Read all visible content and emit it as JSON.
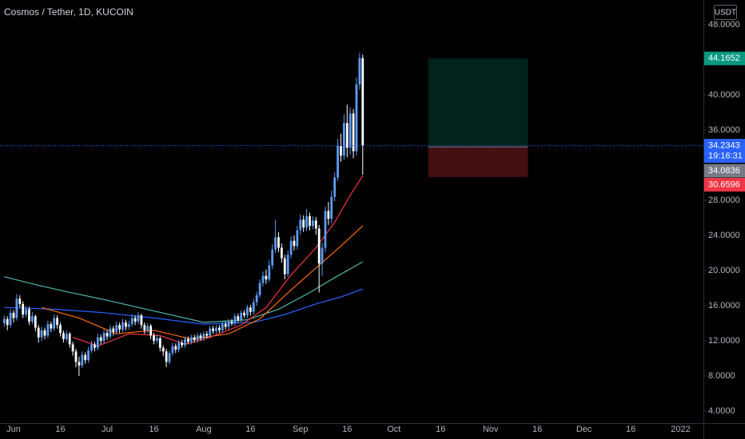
{
  "chart_data": {
    "type": "candlestick",
    "title": "Cosmos / Tether, 1D, KUCOIN",
    "currency": "USDT",
    "countdown": "19:16:31",
    "up_color": "#5b9cf6",
    "down_color": "#ffffff",
    "xlim": [
      -1.36,
      224.3
    ],
    "ylim": [
      2.64,
      50.82
    ],
    "xticks": [
      {
        "value": 3,
        "label": "Jun"
      },
      {
        "value": 18,
        "label": "16"
      },
      {
        "value": 33,
        "label": "Jul"
      },
      {
        "value": 48,
        "label": "16"
      },
      {
        "value": 64,
        "label": "Aug"
      },
      {
        "value": 79,
        "label": "16"
      },
      {
        "value": 95,
        "label": "Sep"
      },
      {
        "value": 110,
        "label": "16"
      },
      {
        "value": 125,
        "label": "Oct"
      },
      {
        "value": 140,
        "label": "16"
      },
      {
        "value": 156,
        "label": "Nov"
      },
      {
        "value": 171,
        "label": "16"
      },
      {
        "value": 186,
        "label": "Dec"
      },
      {
        "value": 201,
        "label": "16"
      },
      {
        "value": 217,
        "label": "2022"
      }
    ],
    "yticks": [
      {
        "value": 4,
        "label": "4.0000"
      },
      {
        "value": 8,
        "label": "8.0000"
      },
      {
        "value": 12,
        "label": "12.0000"
      },
      {
        "value": 16,
        "label": "16.0000"
      },
      {
        "value": 20,
        "label": "20.0000"
      },
      {
        "value": 24,
        "label": "24.0000"
      },
      {
        "value": 28,
        "label": "28.0000"
      },
      {
        "value": 36,
        "label": "36.0000"
      },
      {
        "value": 40,
        "label": "40.0000"
      },
      {
        "value": 48,
        "label": "48.0000"
      }
    ],
    "candles": [
      [
        14.0,
        14.9,
        13.6,
        14.5
      ],
      [
        14.5,
        14.8,
        13.2,
        13.8
      ],
      [
        13.8,
        15.6,
        13.5,
        15.2
      ],
      [
        15.2,
        15.5,
        14.1,
        14.6
      ],
      [
        14.6,
        17.3,
        14.3,
        16.8
      ],
      [
        16.8,
        17.2,
        15.8,
        16.2
      ],
      [
        16.2,
        16.5,
        14.6,
        15.0
      ],
      [
        15.0,
        16.0,
        14.7,
        15.6
      ],
      [
        15.6,
        15.9,
        13.8,
        14.2
      ],
      [
        14.2,
        15.3,
        13.9,
        14.8
      ],
      [
        14.8,
        15.0,
        13.1,
        13.5
      ],
      [
        13.5,
        13.8,
        11.8,
        12.4
      ],
      [
        12.4,
        13.6,
        12.0,
        13.2
      ],
      [
        13.2,
        13.5,
        12.2,
        12.6
      ],
      [
        12.6,
        14.3,
        12.3,
        13.9
      ],
      [
        13.9,
        14.2,
        13.0,
        13.4
      ],
      [
        13.4,
        15.0,
        13.1,
        14.6
      ],
      [
        14.6,
        14.9,
        13.4,
        13.8
      ],
      [
        13.8,
        14.1,
        12.5,
        12.9
      ],
      [
        12.9,
        13.2,
        11.8,
        12.2
      ],
      [
        12.2,
        13.2,
        11.9,
        12.8
      ],
      [
        12.8,
        13.0,
        11.2,
        11.6
      ],
      [
        11.6,
        11.9,
        10.3,
        10.8
      ],
      [
        10.8,
        11.1,
        9.0,
        9.6
      ],
      [
        9.6,
        10.2,
        8.0,
        9.2
      ],
      [
        9.2,
        10.8,
        8.9,
        10.4
      ],
      [
        10.4,
        10.7,
        9.4,
        9.8
      ],
      [
        9.8,
        11.3,
        9.5,
        10.9
      ],
      [
        10.9,
        12.0,
        10.6,
        11.6
      ],
      [
        11.6,
        11.9,
        10.8,
        11.2
      ],
      [
        11.2,
        12.8,
        10.9,
        12.4
      ],
      [
        12.4,
        12.7,
        11.6,
        12.0
      ],
      [
        12.0,
        13.3,
        11.7,
        12.9
      ],
      [
        12.9,
        13.2,
        12.1,
        12.5
      ],
      [
        12.5,
        13.8,
        12.2,
        13.4
      ],
      [
        13.4,
        13.7,
        12.6,
        13.0
      ],
      [
        13.0,
        14.2,
        12.7,
        13.8
      ],
      [
        13.8,
        14.1,
        12.9,
        13.3
      ],
      [
        13.3,
        14.5,
        13.0,
        14.1
      ],
      [
        14.1,
        14.4,
        13.2,
        13.6
      ],
      [
        13.6,
        14.3,
        13.3,
        13.9
      ],
      [
        13.9,
        15.0,
        13.6,
        14.6
      ],
      [
        14.6,
        14.9,
        13.8,
        14.2
      ],
      [
        14.2,
        15.3,
        13.9,
        14.9
      ],
      [
        14.9,
        15.1,
        13.4,
        13.8
      ],
      [
        13.8,
        14.1,
        12.8,
        13.2
      ],
      [
        13.2,
        14.0,
        12.9,
        13.7
      ],
      [
        13.7,
        13.9,
        12.2,
        12.6
      ],
      [
        12.6,
        12.9,
        11.6,
        12.0
      ],
      [
        12.0,
        12.7,
        11.7,
        12.3
      ],
      [
        12.3,
        12.5,
        10.8,
        11.2
      ],
      [
        11.2,
        11.5,
        10.3,
        10.8
      ],
      [
        10.8,
        11.1,
        9.0,
        9.6
      ],
      [
        9.6,
        10.9,
        9.3,
        10.6
      ],
      [
        10.6,
        11.8,
        10.3,
        11.4
      ],
      [
        11.4,
        11.7,
        10.6,
        11.0
      ],
      [
        11.0,
        12.1,
        10.7,
        11.8
      ],
      [
        11.8,
        12.1,
        11.2,
        11.5
      ],
      [
        11.5,
        12.5,
        11.2,
        12.2
      ],
      [
        12.2,
        12.5,
        11.6,
        11.9
      ],
      [
        11.9,
        12.7,
        11.6,
        12.4
      ],
      [
        12.4,
        12.7,
        11.8,
        12.1
      ],
      [
        12.1,
        12.9,
        11.8,
        12.6
      ],
      [
        12.6,
        12.9,
        12.0,
        12.3
      ],
      [
        12.3,
        13.1,
        12.0,
        12.8
      ],
      [
        12.8,
        13.1,
        12.3,
        12.6
      ],
      [
        12.6,
        13.7,
        12.3,
        13.4
      ],
      [
        13.4,
        13.7,
        12.8,
        13.1
      ],
      [
        13.1,
        13.8,
        12.8,
        13.5
      ],
      [
        13.5,
        13.8,
        12.9,
        13.2
      ],
      [
        13.2,
        14.2,
        12.9,
        13.9
      ],
      [
        13.9,
        14.2,
        13.3,
        13.6
      ],
      [
        13.6,
        14.5,
        13.3,
        14.2
      ],
      [
        14.2,
        14.5,
        13.7,
        14.0
      ],
      [
        14.0,
        15.1,
        13.7,
        14.8
      ],
      [
        14.8,
        15.1,
        14.1,
        14.4
      ],
      [
        14.4,
        15.5,
        14.1,
        15.2
      ],
      [
        15.2,
        15.5,
        14.6,
        14.9
      ],
      [
        14.9,
        16.1,
        14.6,
        15.8
      ],
      [
        15.8,
        16.1,
        14.9,
        15.3
      ],
      [
        15.3,
        16.8,
        15.0,
        16.4
      ],
      [
        16.4,
        17.6,
        16.0,
        17.2
      ],
      [
        17.2,
        19.0,
        16.9,
        18.6
      ],
      [
        18.6,
        19.9,
        18.2,
        19.4
      ],
      [
        19.4,
        20.1,
        18.5,
        19.0
      ],
      [
        19.0,
        21.2,
        18.7,
        20.6
      ],
      [
        20.6,
        23.0,
        20.2,
        22.4
      ],
      [
        22.4,
        25.8,
        22.0,
        23.8
      ],
      [
        23.8,
        24.4,
        22.1,
        22.6
      ],
      [
        22.6,
        23.1,
        20.9,
        21.4
      ],
      [
        21.4,
        21.8,
        19.0,
        19.6
      ],
      [
        19.6,
        22.3,
        19.3,
        21.8
      ],
      [
        21.8,
        23.9,
        21.4,
        23.4
      ],
      [
        23.4,
        24.0,
        22.3,
        22.8
      ],
      [
        22.8,
        25.1,
        22.4,
        24.6
      ],
      [
        24.6,
        26.4,
        24.1,
        25.8
      ],
      [
        25.8,
        26.3,
        24.4,
        24.9
      ],
      [
        24.9,
        27.0,
        24.5,
        26.2
      ],
      [
        26.2,
        26.6,
        24.6,
        25.1
      ],
      [
        25.1,
        26.2,
        24.7,
        25.7
      ],
      [
        25.7,
        26.1,
        24.1,
        24.8
      ],
      [
        24.8,
        25.2,
        17.5,
        20.8
      ],
      [
        20.8,
        23.2,
        19.4,
        22.6
      ],
      [
        22.6,
        27.3,
        22.1,
        26.8
      ],
      [
        26.8,
        27.8,
        25.2,
        25.9
      ],
      [
        25.9,
        29.1,
        25.4,
        28.4
      ],
      [
        28.4,
        31.2,
        27.9,
        30.6
      ],
      [
        30.6,
        35.0,
        30.2,
        34.2
      ],
      [
        34.2,
        35.6,
        32.4,
        33.1
      ],
      [
        33.1,
        37.8,
        32.6,
        36.8
      ],
      [
        36.8,
        38.9,
        32.9,
        34.0
      ],
      [
        34.0,
        38.6,
        33.2,
        37.9
      ],
      [
        37.9,
        38.4,
        32.8,
        33.6
      ],
      [
        33.6,
        42.0,
        33.1,
        41.2
      ],
      [
        41.2,
        44.8,
        40.6,
        44.2
      ],
      [
        44.2,
        44.6,
        30.9,
        34.2343
      ]
    ],
    "series": [
      {
        "color": "#2962ff",
        "x": [
          0,
          16,
          32,
          48,
          64,
          80,
          90,
          100,
          108,
          115
        ],
        "values": [
          15.8,
          15.6,
          15.2,
          14.6,
          13.9,
          14.1,
          15.0,
          16.2,
          17.0,
          17.9
        ]
      },
      {
        "color": "#4db6ac",
        "x": [
          0,
          10,
          20,
          32,
          48,
          64,
          78,
          88,
          98,
          106,
          115
        ],
        "values": [
          19.3,
          18.4,
          17.6,
          16.7,
          15.4,
          14.1,
          14.4,
          15.6,
          17.5,
          19.2,
          21.0
        ]
      },
      {
        "color": "#ff6d00",
        "x": [
          12,
          24,
          36,
          48,
          60,
          72,
          82,
          92,
          100,
          108,
          115
        ],
        "values": [
          15.8,
          14.6,
          12.8,
          13.2,
          12.2,
          12.8,
          14.5,
          17.8,
          20.3,
          22.8,
          25.1
        ]
      },
      {
        "color": "#f23645",
        "x": [
          22,
          30,
          40,
          50,
          58,
          66,
          76,
          84,
          92,
          100,
          106,
          111,
          115
        ],
        "values": [
          12.4,
          11.4,
          12.8,
          12.6,
          11.6,
          12.4,
          13.8,
          15.8,
          19.5,
          22.6,
          25.5,
          28.6,
          30.8
        ]
      }
    ],
    "position": {
      "x": [
        136,
        168
      ],
      "target": 44.1652,
      "entry": 34.0836,
      "stop": 30.6596,
      "target_color": "#089981",
      "entry_color": "#787b86",
      "stop_color": "#f23645"
    },
    "last_price_color": "#2962ff"
  }
}
